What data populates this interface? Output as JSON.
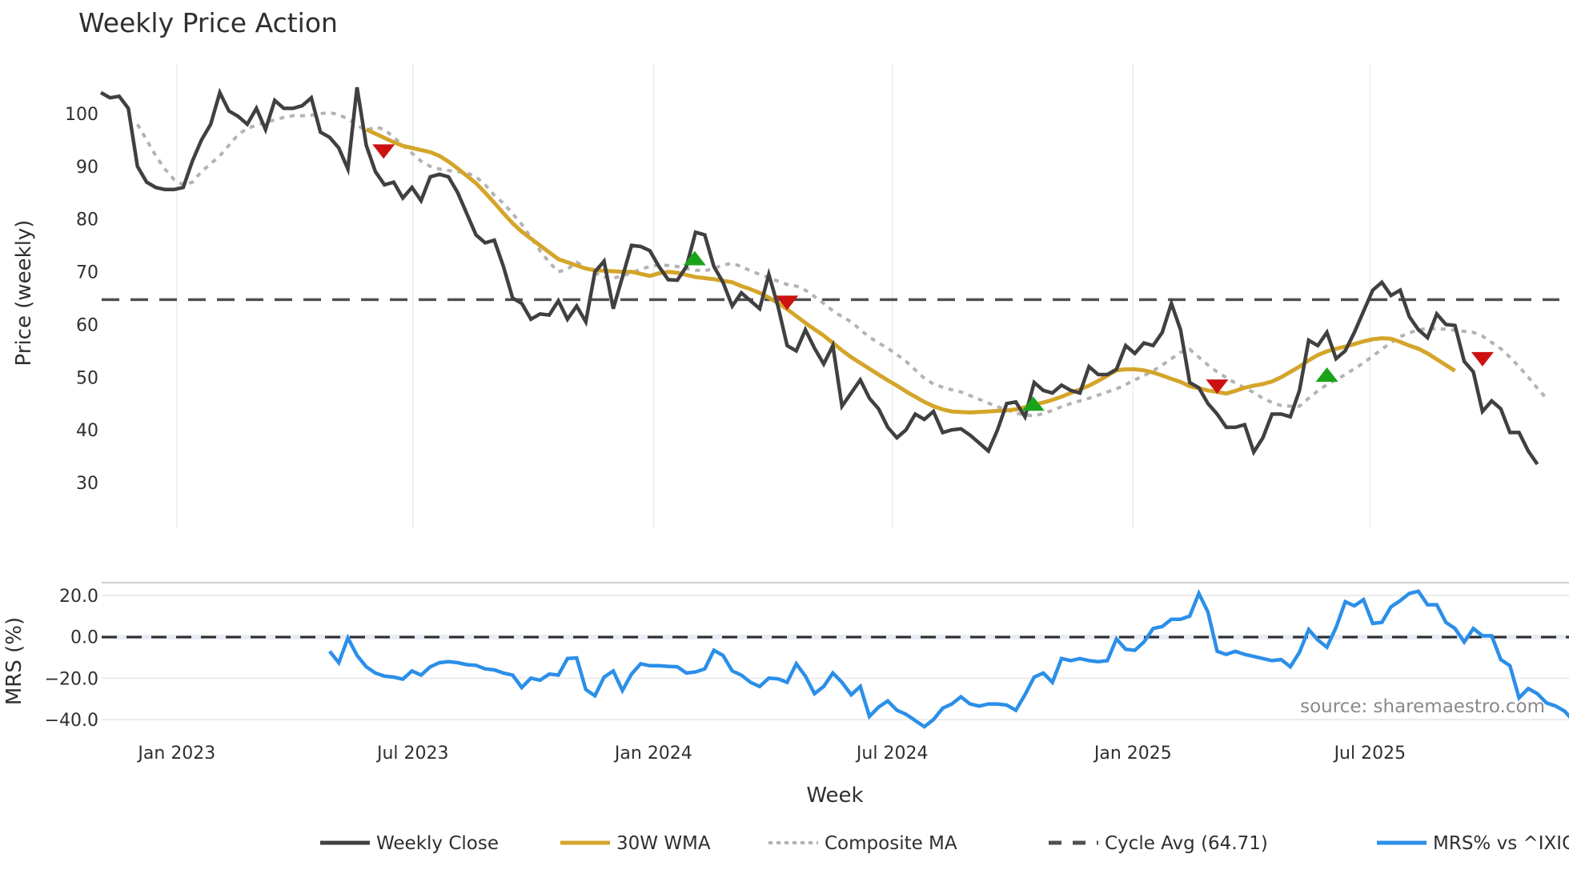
{
  "chart_data": [
    {
      "type": "line",
      "title": "Weekly Price Action",
      "xlabel": "Week",
      "ylabel": "Price (weekly)",
      "ylim": [
        30,
        107
      ],
      "y_ticks": [
        30,
        40,
        50,
        60,
        70,
        80,
        90,
        100
      ],
      "x_tick_labels": [
        "Jan 2023",
        "Jul 2023",
        "Jan 2024",
        "Jul 2024",
        "Jan 2025",
        "Jul 2025"
      ],
      "x_tick_week_index": [
        8.3,
        34.1,
        60.4,
        86.5,
        112.8,
        138.7
      ],
      "grid": "vertical only",
      "week_count": 157,
      "series": [
        {
          "name": "Weekly Close",
          "color": "#404040",
          "start_index": 0,
          "values": [
            104,
            103,
            103.3,
            101,
            90,
            87,
            86,
            85.6,
            85.6,
            86,
            91,
            95,
            98,
            104,
            100.5,
            99.5,
            98,
            101,
            97,
            102.5,
            101,
            101,
            101.5,
            103,
            96.5,
            95.5,
            93.5,
            89.5,
            105,
            94,
            89,
            86.5,
            87,
            84,
            86,
            83.5,
            88,
            88.5,
            88,
            85,
            81,
            77,
            75.5,
            76,
            71,
            65,
            64,
            61,
            62,
            61.8,
            64.5,
            61,
            63.5,
            60.5,
            70,
            72,
            63,
            69,
            75,
            74.8,
            74,
            71,
            68.5,
            68.4,
            71,
            77.5,
            77,
            71,
            68,
            63.5,
            66,
            64.5,
            63,
            69.5,
            63.5,
            56,
            55,
            59,
            55.5,
            52.5,
            56,
            44.5,
            47,
            49.5,
            46,
            44,
            40.5,
            38.5,
            40,
            43,
            42,
            43.5,
            39.5,
            40,
            40.2,
            39,
            37.5,
            36,
            40,
            45,
            45.3,
            42.5,
            49,
            47.5,
            47,
            48.5,
            47.5,
            47,
            52,
            50.5,
            50.5,
            51.5,
            56,
            54.5,
            56.5,
            56,
            58.5,
            64,
            59,
            49,
            48,
            45,
            43,
            40.5,
            40.5,
            41,
            35.8,
            38.5,
            43,
            43,
            42.5,
            47.5,
            57,
            56,
            58.5,
            53.5,
            55,
            58.5,
            62.5,
            66.5,
            68,
            65.5,
            66.5,
            61.5,
            59,
            57.5,
            62,
            60,
            59.8,
            53,
            51,
            43.5,
            45.5,
            44,
            39.5,
            39.5,
            36,
            33.5
          ]
        },
        {
          "name": "30W WMA",
          "color": "#d4a52a",
          "start_index": 29,
          "values": [
            97,
            96.2,
            95.4,
            94.6,
            93.9,
            93.5,
            93.1,
            92.7,
            92,
            90.9,
            89.6,
            88.2,
            86.8,
            85,
            83.1,
            81.1,
            79.2,
            77.6,
            76.3,
            75,
            73.7,
            72.4,
            71.8,
            71.2,
            70.6,
            70.3,
            70.2,
            70.1,
            70,
            70,
            69.6,
            69.2,
            69.7,
            70,
            69.8,
            69.4,
            69,
            68.8,
            68.6,
            68.3,
            68,
            67.3,
            66.7,
            66,
            65.1,
            64.1,
            62.9,
            61.6,
            60.3,
            59.1,
            57.9,
            56.5,
            55.1,
            53.8,
            52.7,
            51.6,
            50.5,
            49.4,
            48.4,
            47.3,
            46.3,
            45.3,
            44.5,
            43.9,
            43.5,
            43.4,
            43.3,
            43.4,
            43.5,
            43.6,
            43.7,
            43.9,
            44.3,
            44.8,
            45.2,
            45.7,
            46.3,
            47,
            47.7,
            48.4,
            49.3,
            50.3,
            51.3,
            51.5,
            51.5,
            51.3,
            50.9,
            50.3,
            49.7,
            49.1,
            48.3,
            47.9,
            47.5,
            47.2,
            46.9,
            47.4,
            48,
            48.4,
            48.7,
            49.2,
            50,
            51,
            52,
            53.2,
            54.2,
            54.9,
            55.4,
            55.8,
            56.3,
            56.8,
            57.2,
            57.4,
            57.3,
            56.7,
            56,
            55.4,
            54.5,
            53.4,
            52.3,
            51.2
          ]
        },
        {
          "name": "Composite MA",
          "color": "#b3b3b3",
          "start_index": 4,
          "values": [
            98,
            95,
            92,
            89.5,
            87.5,
            86.5,
            87,
            89,
            90.5,
            92,
            94,
            96,
            97.2,
            97.8,
            98.4,
            98.8,
            99.3,
            99.6,
            99.6,
            99.7,
            100,
            100.2,
            99.8,
            99,
            97.8,
            96.8,
            97.5,
            97,
            95.5,
            94,
            92.5,
            91,
            90,
            89.5,
            89.2,
            89,
            88.8,
            88,
            86.5,
            84.5,
            83,
            81,
            79,
            76.5,
            74,
            71.8,
            70,
            70.5,
            71.8,
            70.8,
            69.8,
            69,
            68.8,
            69.2,
            69.8,
            70.5,
            71,
            71.3,
            71.2,
            71,
            70.6,
            70.3,
            70.2,
            70.6,
            71.3,
            71.6,
            71,
            70.2,
            69.5,
            68.9,
            68.2,
            67.6,
            67.3,
            66.5,
            65.3,
            64,
            62.6,
            61.5,
            60.5,
            59,
            57.6,
            56.5,
            55.5,
            54.3,
            53,
            51.4,
            49.8,
            48.7,
            48.1,
            47.6,
            47.2,
            46.5,
            45.8,
            45.1,
            44.4,
            43.8,
            43.2,
            42.8,
            42.7,
            43.1,
            43.7,
            44.4,
            45,
            45.5,
            46,
            46.6,
            47.2,
            47.8,
            48.6,
            49.5,
            50.3,
            51.2,
            52.3,
            53.5,
            54.7,
            55.3,
            53.8,
            52.3,
            51,
            49.9,
            48.9,
            48,
            47.1,
            46,
            45.2,
            44.6,
            44.5,
            44.5,
            46,
            47.4,
            48.6,
            49.5,
            50.5,
            51.6,
            52.7,
            54,
            55.3,
            56.6,
            57.7,
            58.4,
            59,
            59.2,
            59.2,
            59.1,
            58.9,
            58.7,
            58.5,
            57.8,
            56.6,
            55.4,
            53.8,
            52,
            50,
            47.9,
            46
          ]
        },
        {
          "name": "Cycle Avg (64.71)",
          "color": "#505050",
          "style": "dashed",
          "value": 64.71
        }
      ],
      "signals": [
        {
          "type": "sell",
          "color": "#cc1111",
          "week_index": 30.9,
          "value": 92.8
        },
        {
          "type": "buy",
          "color": "#1aa31a",
          "week_index": 64.9,
          "value": 72.6
        },
        {
          "type": "sell",
          "color": "#cc1111",
          "week_index": 75,
          "value": 64.1
        },
        {
          "type": "buy",
          "color": "#1aa31a",
          "week_index": 101.9,
          "value": 45
        },
        {
          "type": "sell",
          "color": "#cc1111",
          "week_index": 122,
          "value": 48.2
        },
        {
          "type": "buy",
          "color": "#1aa31a",
          "week_index": 134,
          "value": 50.5
        },
        {
          "type": "sell",
          "color": "#cc1111",
          "week_index": 151,
          "value": 53.4
        }
      ]
    },
    {
      "type": "line",
      "title": "",
      "xlabel": "Week",
      "ylabel": "MRS (%)",
      "ylim": [
        -46,
        26
      ],
      "y_ticks": [
        20.0,
        0.0,
        -20.0,
        -40.0
      ],
      "y_tick_labels": [
        "20.0",
        "0.0",
        "−20.0",
        "−40.0"
      ],
      "zero_line": {
        "value": 0,
        "style": "dashed",
        "color": "#2a2a2a"
      },
      "series": [
        {
          "name": "MRS% vs ^IXIC",
          "color": "#2b8fe8",
          "start_index": 25,
          "values": [
            -7,
            -12.5,
            -0.5,
            -9,
            -14.5,
            -17.5,
            -19,
            -19.5,
            -20.5,
            -16.5,
            -18.5,
            -14.5,
            -12.5,
            -12,
            -12.5,
            -13.5,
            -13.8,
            -15.5,
            -16,
            -17.5,
            -18.5,
            -24.5,
            -20,
            -21,
            -18,
            -18.5,
            -10.5,
            -10.2,
            -25.5,
            -28.5,
            -19.5,
            -16.5,
            -26,
            -18,
            -13,
            -14,
            -14,
            -14.3,
            -14.5,
            -17.5,
            -17,
            -15.5,
            -6.5,
            -9,
            -16.5,
            -18.5,
            -22,
            -24,
            -20,
            -20.3,
            -22,
            -13,
            -19,
            -27.5,
            -24,
            -17.5,
            -22,
            -28,
            -24,
            -38.5,
            -34,
            -31,
            -35.5,
            -37.5,
            -40.5,
            -43.5,
            -40,
            -34.5,
            -32.5,
            -29,
            -32.5,
            -33.5,
            -32.5,
            -32.5,
            -33,
            -35.5,
            -28,
            -19.5,
            -17.5,
            -22,
            -10.5,
            -11.5,
            -10.5,
            -11.5,
            -12,
            -11.5,
            -1,
            -6,
            -6.5,
            -2.5,
            4,
            5,
            8.5,
            8.5,
            10,
            21,
            12,
            -7,
            -8.5,
            -7,
            -8.5,
            -9.5,
            -10.5,
            -11.5,
            -11,
            -14.5,
            -7.5,
            3.5,
            -1.5,
            -5,
            4.5,
            17,
            15,
            18,
            6.5,
            7,
            14.5,
            17.5,
            21,
            22,
            15.5,
            15.5,
            7,
            4,
            -2.5,
            4,
            0.5,
            0.5,
            -11,
            -14,
            -29.5,
            -25,
            -27.5,
            -32,
            -33.5,
            -36,
            -41,
            -43
          ]
        }
      ],
      "annotation": "source: sharemaestro.com"
    }
  ],
  "header": {
    "title": "Weekly Price Action"
  },
  "axes": {
    "price_ylabel": "Price (weekly)",
    "mrs_ylabel": "MRS (%)",
    "xlabel": "Week",
    "price_ticks": [
      "100",
      "90",
      "80",
      "70",
      "60",
      "50",
      "40",
      "30"
    ],
    "mrs_ticks": [
      "20.0",
      "0.0",
      "−20.0",
      "−40.0"
    ],
    "date_ticks": [
      "Jan 2023",
      "Jul 2023",
      "Jan 2024",
      "Jul 2024",
      "Jan 2025",
      "Jul 2025"
    ]
  },
  "legend": {
    "items": [
      {
        "label": "Weekly Close",
        "color": "#404040",
        "style": "solid"
      },
      {
        "label": "30W WMA",
        "color": "#d4a52a",
        "style": "solid"
      },
      {
        "label": "Composite MA",
        "color": "#b3b3b3",
        "style": "dotted"
      },
      {
        "label": "Cycle Avg (64.71)",
        "color": "#505050",
        "style": "dashed"
      },
      {
        "label": "MRS% vs ^IXIC",
        "color": "#2b8fe8",
        "style": "solid"
      }
    ]
  },
  "watermark": "source: sharemaestro.com"
}
